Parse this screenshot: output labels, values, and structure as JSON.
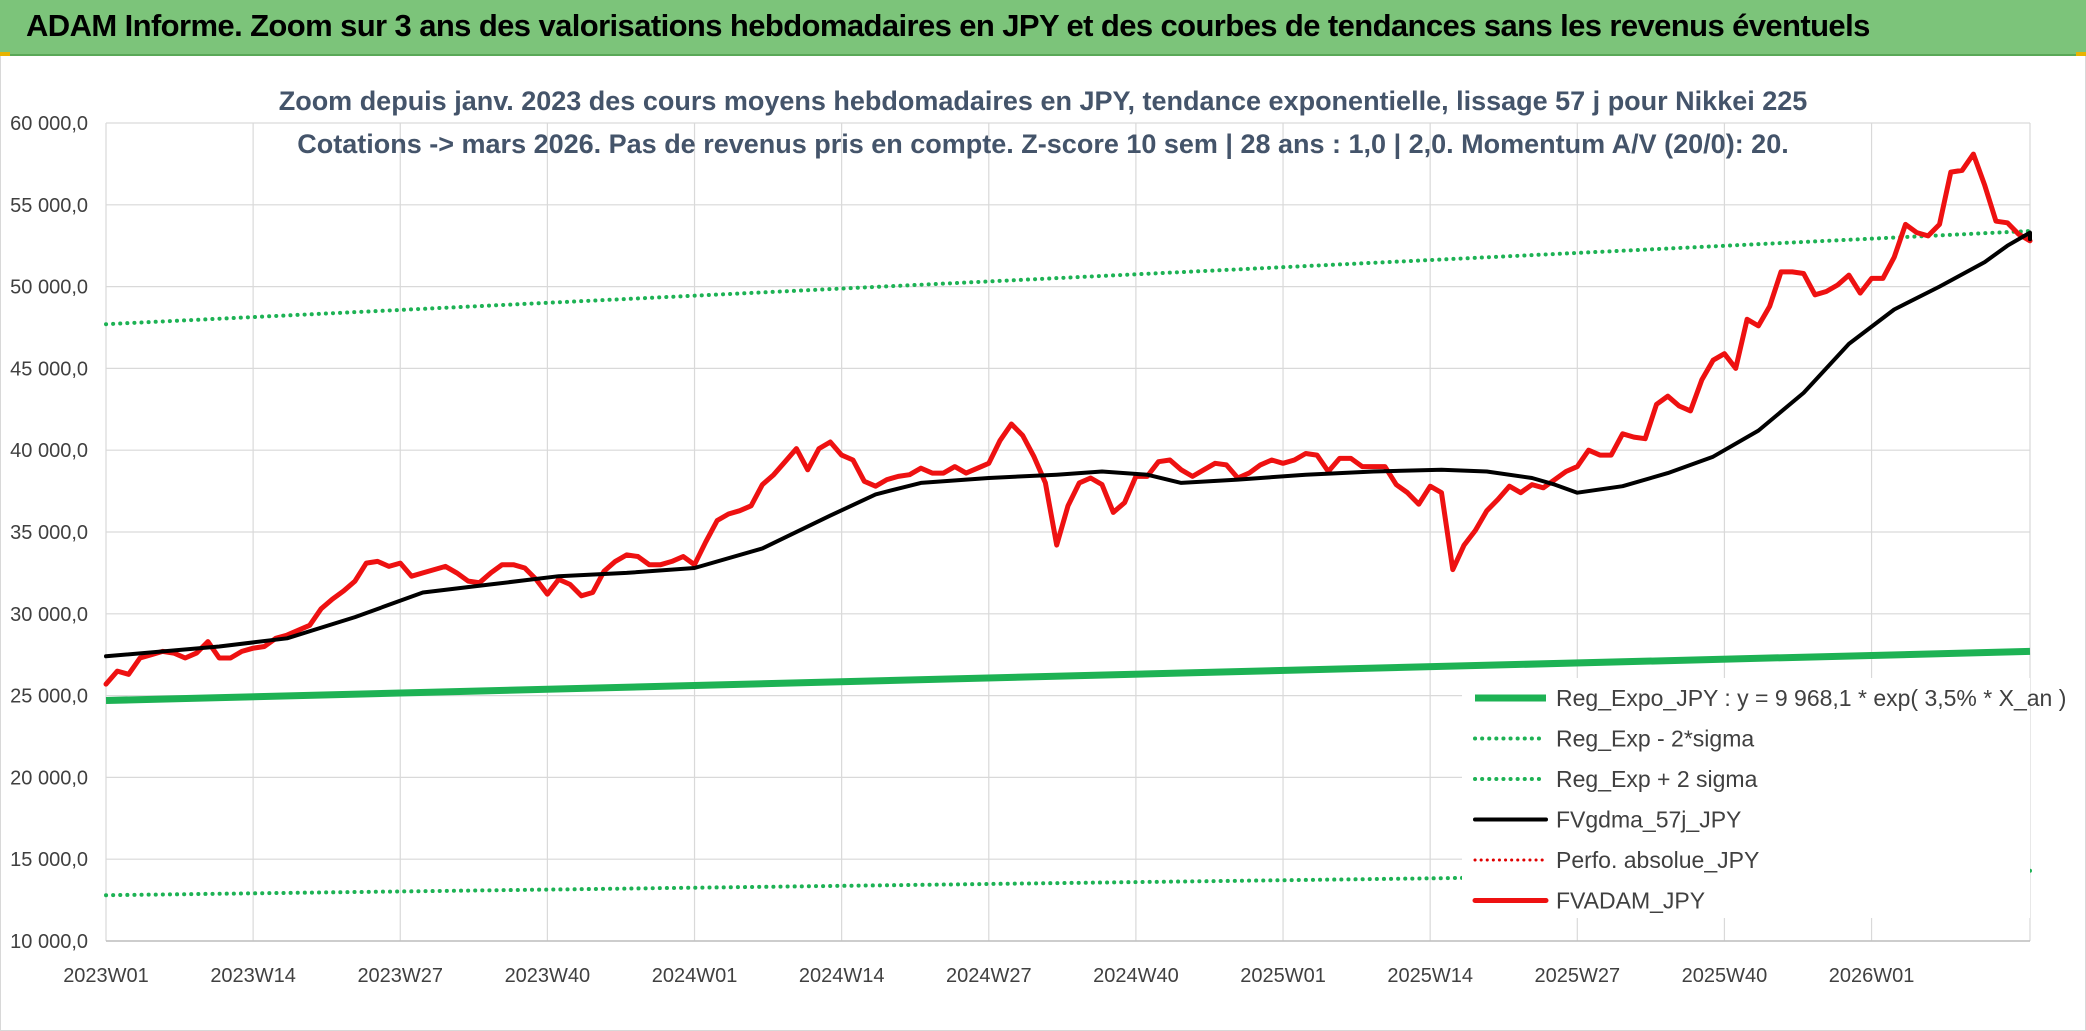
{
  "banner": {
    "title": "ADAM Informe. Zoom sur 3 ans des valorisations hebdomadaires en JPY et des courbes de tendances sans les revenus éventuels"
  },
  "colors": {
    "banner_bg": "#7cc47a",
    "reg_expo": "#1db254",
    "band": "#1db254",
    "fvgdma": "#000000",
    "perfo": "#e00000",
    "fvadam": "#ee1111",
    "grid": "#d9d9d9"
  },
  "chart_data": {
    "type": "line",
    "title_lines": [
      "Zoom depuis janv. 2023 des cours moyens hebdomadaires en JPY, tendance exponentielle, lissage 57 j pour Nikkei 225",
      "Cotations -> mars 2026. Pas de revenus pris en compte. Z-score 10 sem | 28 ans : 1,0 | 2,0. Momentum A/V (20/0): 20."
    ],
    "ylim": [
      10000,
      60000
    ],
    "yticks": [
      {
        "value": 10000,
        "label": "10 000,0"
      },
      {
        "value": 15000,
        "label": "15 000,0"
      },
      {
        "value": 20000,
        "label": "20 000,0"
      },
      {
        "value": 25000,
        "label": "25 000,0"
      },
      {
        "value": 30000,
        "label": "30 000,0"
      },
      {
        "value": 35000,
        "label": "35 000,0"
      },
      {
        "value": 40000,
        "label": "40 000,0"
      },
      {
        "value": 45000,
        "label": "45 000,0"
      },
      {
        "value": 50000,
        "label": "50 000,0"
      },
      {
        "value": 55000,
        "label": "55 000,0"
      },
      {
        "value": 60000,
        "label": "60 000,0"
      }
    ],
    "xticks": [
      {
        "index": 0,
        "label": "2023W01"
      },
      {
        "index": 13,
        "label": "2023W14"
      },
      {
        "index": 26,
        "label": "2023W27"
      },
      {
        "index": 39,
        "label": "2023W40"
      },
      {
        "index": 52,
        "label": "2024W01"
      },
      {
        "index": 65,
        "label": "2024W14"
      },
      {
        "index": 78,
        "label": "2024W27"
      },
      {
        "index": 91,
        "label": "2024W40"
      },
      {
        "index": 104,
        "label": "2025W01"
      },
      {
        "index": 117,
        "label": "2025W14"
      },
      {
        "index": 130,
        "label": "2025W27"
      },
      {
        "index": 143,
        "label": "2025W40"
      },
      {
        "index": 156,
        "label": "2026W01"
      }
    ],
    "x_count": 171,
    "grid": true,
    "legend_position": "bottom-right",
    "series": [
      {
        "key": "reg_expo",
        "name": "Reg_Expo_JPY : y = 9 968,1 * exp( 3,5% *  X_an )",
        "style": "thick",
        "points": [
          [
            0,
            24700
          ],
          [
            170,
            27700
          ]
        ]
      },
      {
        "key": "reg_minus",
        "name": "Reg_Exp - 2*sigma",
        "style": "dotted",
        "points": [
          [
            0,
            12800
          ],
          [
            170,
            14300
          ]
        ]
      },
      {
        "key": "reg_plus",
        "name": "Reg_Exp + 2 sigma",
        "style": "dotted",
        "points": [
          [
            0,
            47700
          ],
          [
            170,
            53400
          ]
        ]
      },
      {
        "key": "fvgdma",
        "name": "FVgdma_57j_JPY",
        "style": "solid",
        "points": [
          [
            0,
            27400
          ],
          [
            10,
            28000
          ],
          [
            16,
            28500
          ],
          [
            22,
            29800
          ],
          [
            28,
            31300
          ],
          [
            34,
            31800
          ],
          [
            40,
            32300
          ],
          [
            46,
            32500
          ],
          [
            52,
            32800
          ],
          [
            58,
            34000
          ],
          [
            64,
            36000
          ],
          [
            68,
            37300
          ],
          [
            72,
            38000
          ],
          [
            78,
            38300
          ],
          [
            84,
            38500
          ],
          [
            88,
            38700
          ],
          [
            92,
            38500
          ],
          [
            95,
            38000
          ],
          [
            100,
            38200
          ],
          [
            106,
            38500
          ],
          [
            112,
            38700
          ],
          [
            118,
            38800
          ],
          [
            122,
            38700
          ],
          [
            126,
            38300
          ],
          [
            128,
            37900
          ],
          [
            130,
            37400
          ],
          [
            134,
            37800
          ],
          [
            138,
            38600
          ],
          [
            142,
            39600
          ],
          [
            146,
            41200
          ],
          [
            150,
            43500
          ],
          [
            154,
            46500
          ],
          [
            158,
            48600
          ],
          [
            162,
            50000
          ],
          [
            166,
            51500
          ],
          [
            168,
            52500
          ],
          [
            170,
            53300
          ],
          [
            172,
            53300
          ],
          [
            174,
            53100
          ],
          [
            176,
            52900
          ]
        ]
      },
      {
        "key": "perfo",
        "name": "Perfo. absolue_JPY",
        "style": "dotted-red",
        "points": []
      },
      {
        "key": "fvadam",
        "name": "FVADAM_JPY",
        "style": "thick-red",
        "points": [
          [
            0,
            25700
          ],
          [
            1,
            26500
          ],
          [
            2,
            26300
          ],
          [
            3,
            27300
          ],
          [
            4,
            27500
          ],
          [
            5,
            27700
          ],
          [
            6,
            27600
          ],
          [
            7,
            27300
          ],
          [
            8,
            27600
          ],
          [
            9,
            28300
          ],
          [
            10,
            27300
          ],
          [
            11,
            27300
          ],
          [
            12,
            27700
          ],
          [
            13,
            27900
          ],
          [
            14,
            28000
          ],
          [
            15,
            28500
          ],
          [
            16,
            28700
          ],
          [
            17,
            29000
          ],
          [
            18,
            29300
          ],
          [
            19,
            30300
          ],
          [
            20,
            30900
          ],
          [
            21,
            31400
          ],
          [
            22,
            32000
          ],
          [
            23,
            33100
          ],
          [
            24,
            33200
          ],
          [
            25,
            32900
          ],
          [
            26,
            33100
          ],
          [
            27,
            32300
          ],
          [
            28,
            32500
          ],
          [
            29,
            32700
          ],
          [
            30,
            32900
          ],
          [
            31,
            32500
          ],
          [
            32,
            32000
          ],
          [
            33,
            31900
          ],
          [
            34,
            32500
          ],
          [
            35,
            33000
          ],
          [
            36,
            33000
          ],
          [
            37,
            32800
          ],
          [
            38,
            32100
          ],
          [
            39,
            31200
          ],
          [
            40,
            32100
          ],
          [
            41,
            31800
          ],
          [
            42,
            31100
          ],
          [
            43,
            31300
          ],
          [
            44,
            32600
          ],
          [
            45,
            33200
          ],
          [
            46,
            33600
          ],
          [
            47,
            33500
          ],
          [
            48,
            33000
          ],
          [
            49,
            33000
          ],
          [
            50,
            33200
          ],
          [
            51,
            33500
          ],
          [
            52,
            33000
          ],
          [
            53,
            34400
          ],
          [
            54,
            35700
          ],
          [
            55,
            36100
          ],
          [
            56,
            36300
          ],
          [
            57,
            36600
          ],
          [
            58,
            37900
          ],
          [
            59,
            38500
          ],
          [
            60,
            39300
          ],
          [
            61,
            40100
          ],
          [
            62,
            38800
          ],
          [
            63,
            40100
          ],
          [
            64,
            40500
          ],
          [
            65,
            39700
          ],
          [
            66,
            39400
          ],
          [
            67,
            38100
          ],
          [
            68,
            37800
          ],
          [
            69,
            38200
          ],
          [
            70,
            38400
          ],
          [
            71,
            38500
          ],
          [
            72,
            38900
          ],
          [
            73,
            38600
          ],
          [
            74,
            38600
          ],
          [
            75,
            39000
          ],
          [
            76,
            38600
          ],
          [
            77,
            38900
          ],
          [
            78,
            39200
          ],
          [
            79,
            40600
          ],
          [
            80,
            41600
          ],
          [
            81,
            40900
          ],
          [
            82,
            39600
          ],
          [
            83,
            38000
          ],
          [
            84,
            34200
          ],
          [
            85,
            36600
          ],
          [
            86,
            38000
          ],
          [
            87,
            38300
          ],
          [
            88,
            37900
          ],
          [
            89,
            36200
          ],
          [
            90,
            36800
          ],
          [
            91,
            38400
          ],
          [
            92,
            38400
          ],
          [
            93,
            39300
          ],
          [
            94,
            39400
          ],
          [
            95,
            38800
          ],
          [
            96,
            38400
          ],
          [
            97,
            38800
          ],
          [
            98,
            39200
          ],
          [
            99,
            39100
          ],
          [
            100,
            38300
          ],
          [
            101,
            38600
          ],
          [
            102,
            39100
          ],
          [
            103,
            39400
          ],
          [
            104,
            39200
          ],
          [
            105,
            39400
          ],
          [
            106,
            39800
          ],
          [
            107,
            39700
          ],
          [
            108,
            38700
          ],
          [
            109,
            39500
          ],
          [
            110,
            39500
          ],
          [
            111,
            39000
          ],
          [
            112,
            39000
          ],
          [
            113,
            39000
          ],
          [
            114,
            37900
          ],
          [
            115,
            37400
          ],
          [
            116,
            36700
          ],
          [
            117,
            37800
          ],
          [
            118,
            37400
          ],
          [
            119,
            32700
          ],
          [
            120,
            34200
          ],
          [
            121,
            35100
          ],
          [
            122,
            36300
          ],
          [
            123,
            37000
          ],
          [
            124,
            37800
          ],
          [
            125,
            37400
          ],
          [
            126,
            37900
          ],
          [
            127,
            37700
          ],
          [
            128,
            38200
          ],
          [
            129,
            38700
          ],
          [
            130,
            39000
          ],
          [
            131,
            40000
          ],
          [
            132,
            39700
          ],
          [
            133,
            39700
          ],
          [
            134,
            41000
          ],
          [
            135,
            40800
          ],
          [
            136,
            40700
          ],
          [
            137,
            42800
          ],
          [
            138,
            43300
          ],
          [
            139,
            42700
          ],
          [
            140,
            42400
          ],
          [
            141,
            44300
          ],
          [
            142,
            45500
          ],
          [
            143,
            45900
          ],
          [
            144,
            45000
          ],
          [
            145,
            48000
          ],
          [
            146,
            47600
          ],
          [
            147,
            48800
          ],
          [
            148,
            50900
          ],
          [
            149,
            50900
          ],
          [
            150,
            50800
          ],
          [
            151,
            49500
          ],
          [
            152,
            49700
          ],
          [
            153,
            50100
          ],
          [
            154,
            50700
          ],
          [
            155,
            49600
          ],
          [
            156,
            50500
          ],
          [
            157,
            50500
          ],
          [
            158,
            51800
          ],
          [
            159,
            53800
          ],
          [
            160,
            53300
          ],
          [
            161,
            53100
          ],
          [
            162,
            53800
          ],
          [
            163,
            57000
          ],
          [
            164,
            57100
          ],
          [
            165,
            58100
          ],
          [
            166,
            56200
          ],
          [
            167,
            54000
          ],
          [
            168,
            53900
          ],
          [
            169,
            53200
          ],
          [
            170,
            52800
          ]
        ]
      }
    ]
  }
}
